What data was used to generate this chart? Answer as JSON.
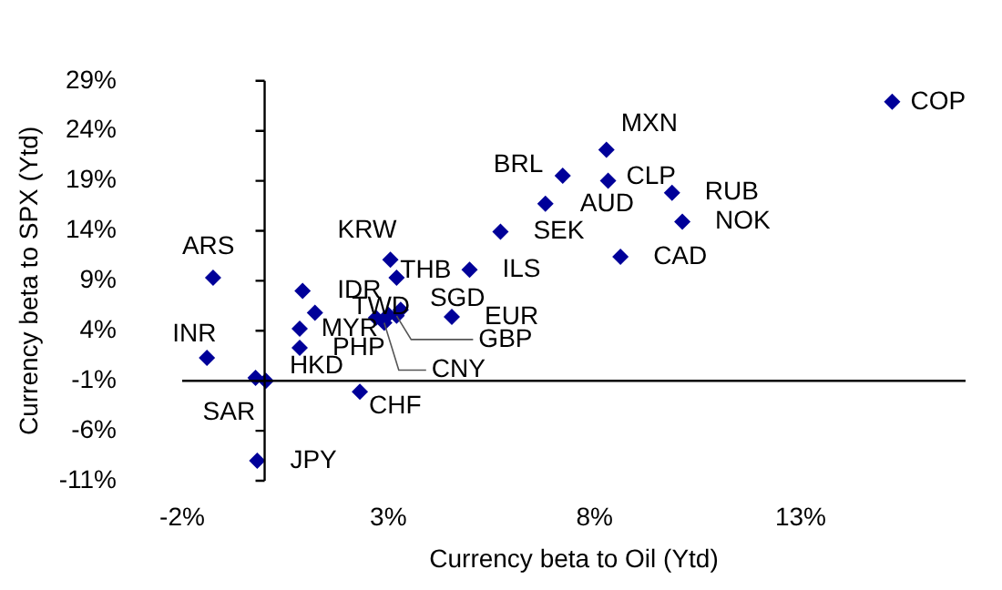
{
  "chart_data": {
    "type": "scatter",
    "xlabel": "Currency beta to Oil (Ytd)",
    "ylabel": "Currency beta to SPX (Ytd)",
    "marker": "diamond",
    "grid": false,
    "legend": false,
    "x": [
      15.22,
      8.29,
      7.23,
      8.33,
      6.81,
      9.88,
      10.13,
      8.63,
      5.72,
      4.97,
      3.05,
      3.2,
      -1.25,
      0.92,
      3.3,
      4.54,
      3.2,
      3.0,
      2.7,
      2.9,
      0.85,
      -1.4,
      0.03,
      -0.22,
      2.31,
      -0.18,
      1.22,
      0.85
    ],
    "series": [
      {
        "color": "#000099",
        "values": [
          26.9,
          22.1,
          19.5,
          19.0,
          16.7,
          17.8,
          14.9,
          11.4,
          13.9,
          10.1,
          11.1,
          9.3,
          9.3,
          8.0,
          6.1,
          5.4,
          5.5,
          5.6,
          5.3,
          4.8,
          2.3,
          1.3,
          -1.0,
          -0.7,
          -2.1,
          -9.0,
          5.8,
          4.2
        ]
      }
    ],
    "ref_lines": [
      {
        "axis": "y",
        "value": -1,
        "color": "#000000"
      },
      {
        "axis": "x",
        "value": 0,
        "color": "#000000"
      }
    ],
    "xlim": [
      -2,
      17
    ],
    "xticks": [
      {
        "value": -2,
        "label": "-2%"
      },
      {
        "value": 3,
        "label": "3%"
      },
      {
        "value": 8,
        "label": "8%"
      },
      {
        "value": 13,
        "label": "13%"
      }
    ],
    "ylim": [
      -11,
      29
    ],
    "yticks": [
      {
        "value": -11,
        "label": "-11%"
      },
      {
        "value": -6,
        "label": "-6%"
      },
      {
        "value": -1,
        "label": "-1%"
      },
      {
        "value": 4,
        "label": "4%"
      },
      {
        "value": 9,
        "label": "9%"
      },
      {
        "value": 14,
        "label": "14%"
      },
      {
        "value": 19,
        "label": "19%"
      },
      {
        "value": 24,
        "label": "24%"
      },
      {
        "value": 29,
        "label": "29%"
      }
    ],
    "annotations": [
      {
        "text": "COP",
        "x": 15.22,
        "y": 26.9
      },
      {
        "text": "MXN",
        "x": 8.29,
        "y": 22.1
      },
      {
        "text": "BRL",
        "x": 7.23,
        "y": 19.5
      },
      {
        "text": "CLP",
        "x": 8.33,
        "y": 19.0
      },
      {
        "text": "AUD",
        "x": 6.81,
        "y": 16.7
      },
      {
        "text": "RUB",
        "x": 9.88,
        "y": 17.8
      },
      {
        "text": "NOK",
        "x": 10.13,
        "y": 14.9
      },
      {
        "text": "CAD",
        "x": 8.63,
        "y": 11.4
      },
      {
        "text": "SEK",
        "x": 5.72,
        "y": 13.9
      },
      {
        "text": "ILS",
        "x": 4.97,
        "y": 10.1
      },
      {
        "text": "KRW",
        "x": 3.05,
        "y": 11.1
      },
      {
        "text": "THB",
        "x": 3.2,
        "y": 9.3
      },
      {
        "text": "ARS",
        "x": -1.25,
        "y": 9.3
      },
      {
        "text": "IDR",
        "x": 0.92,
        "y": 8.0
      },
      {
        "text": "SGD",
        "x": 3.3,
        "y": 6.1
      },
      {
        "text": "EUR",
        "x": 4.54,
        "y": 5.4
      },
      {
        "text": "GBP",
        "x": 3.2,
        "y": 5.5
      },
      {
        "text": "TWD",
        "x": 3.0,
        "y": 5.6
      },
      {
        "text": "MYR",
        "x": 2.7,
        "y": 5.3
      },
      {
        "text": "CNY",
        "x": 2.9,
        "y": 4.8
      },
      {
        "text": "PHP",
        "x": 0.85,
        "y": 2.3
      },
      {
        "text": "INR",
        "x": -1.4,
        "y": 1.3
      },
      {
        "text": "HKD",
        "x": 0.03,
        "y": -1.0
      },
      {
        "text": "SAR",
        "x": -0.22,
        "y": -0.7
      },
      {
        "text": "CHF",
        "x": 2.31,
        "y": -2.1
      },
      {
        "text": "JPY",
        "x": -0.18,
        "y": -9.0
      }
    ]
  }
}
